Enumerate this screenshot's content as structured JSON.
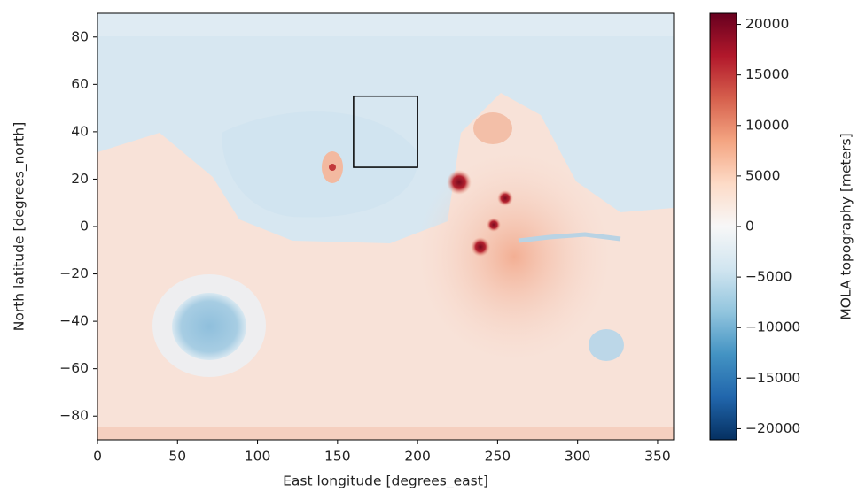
{
  "chart_data": {
    "type": "heatmap",
    "xlabel": "East longitude [degrees_east]",
    "ylabel": "North latitude [degrees_north]",
    "xlim": [
      0,
      360
    ],
    "ylim": [
      -90,
      90
    ],
    "xticks": [
      0,
      50,
      100,
      150,
      200,
      250,
      300,
      350
    ],
    "yticks": [
      {
        "value": -80,
        "label": "−80"
      },
      {
        "value": -60,
        "label": "−60"
      },
      {
        "value": -40,
        "label": "−40"
      },
      {
        "value": -20,
        "label": "−20"
      },
      0,
      20,
      40,
      60,
      80
    ],
    "colorbar": {
      "label": "MOLA topography [meters]",
      "lim": [
        -21100,
        21100
      ],
      "ticks": [
        {
          "value": -20000,
          "label": "−20000"
        },
        {
          "value": -15000,
          "label": "−15000"
        },
        {
          "value": -10000,
          "label": "−10000"
        },
        {
          "value": -5000,
          "label": "−5000"
        },
        0,
        5000,
        10000,
        15000,
        20000
      ],
      "colors": [
        "#053061",
        "#2166ac",
        "#4393c3",
        "#92c5de",
        "#d1e5f0",
        "#f7f7f7",
        "#fddbc7",
        "#f4a582",
        "#d6604d",
        "#b2182b",
        "#67001f"
      ]
    },
    "annotation_box": {
      "x": [
        160,
        200
      ],
      "y": [
        25,
        55
      ],
      "color": "#000000"
    }
  }
}
